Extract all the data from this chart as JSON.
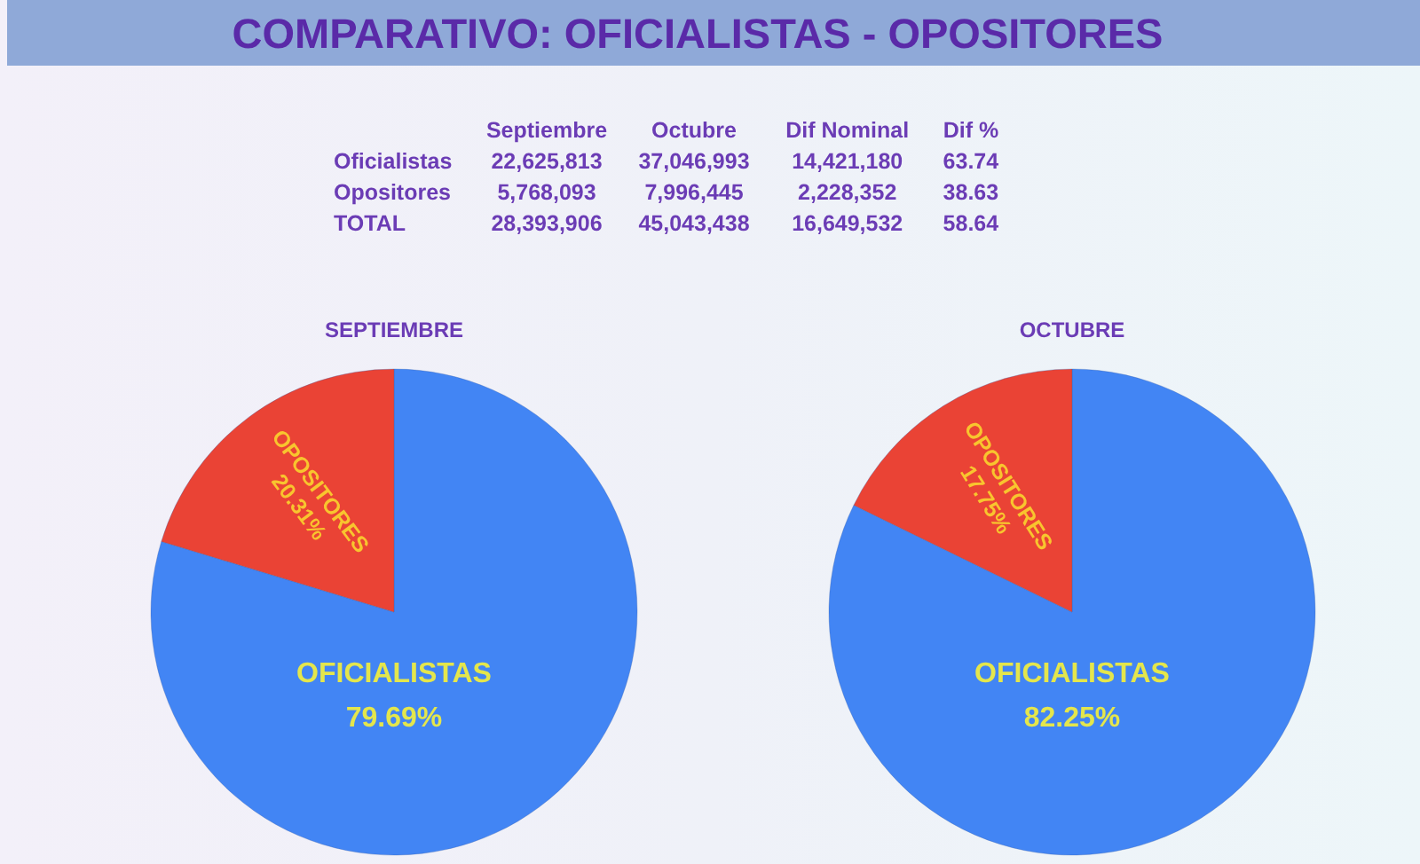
{
  "chart_data": [
    {
      "type": "other",
      "title": "COMPARATIVO: OFICIALISTAS - OPOSITORES",
      "categories": [
        "Septiembre",
        "Octubre",
        "Dif Nominal",
        "Dif %"
      ],
      "y_categories": [
        "Oficialistas",
        "Opositores",
        "TOTAL"
      ],
      "cell_labels": [
        [
          "22,625,813",
          "37,046,993",
          "14,421,180",
          "63.74"
        ],
        [
          "5,768,093",
          "7,996,445",
          "2,228,352",
          "38.63"
        ],
        [
          "28,393,906",
          "45,043,438",
          "16,649,532",
          "58.64"
        ]
      ]
    },
    {
      "type": "pie",
      "title": "SEPTIEMBRE",
      "categories": [
        "OFICIALISTAS",
        "OPOSITORES"
      ],
      "values": [
        79.69,
        20.31
      ],
      "colors": [
        "#4285f4",
        "#ea4335"
      ],
      "value_labels": [
        "79.69%",
        "20.31%"
      ]
    },
    {
      "type": "pie",
      "title": "OCTUBRE",
      "categories": [
        "OFICIALISTAS",
        "OPOSITORES"
      ],
      "values": [
        82.25,
        17.75
      ],
      "colors": [
        "#4285f4",
        "#ea4335"
      ],
      "value_labels": [
        "82.25%",
        "17.75%"
      ]
    }
  ]
}
